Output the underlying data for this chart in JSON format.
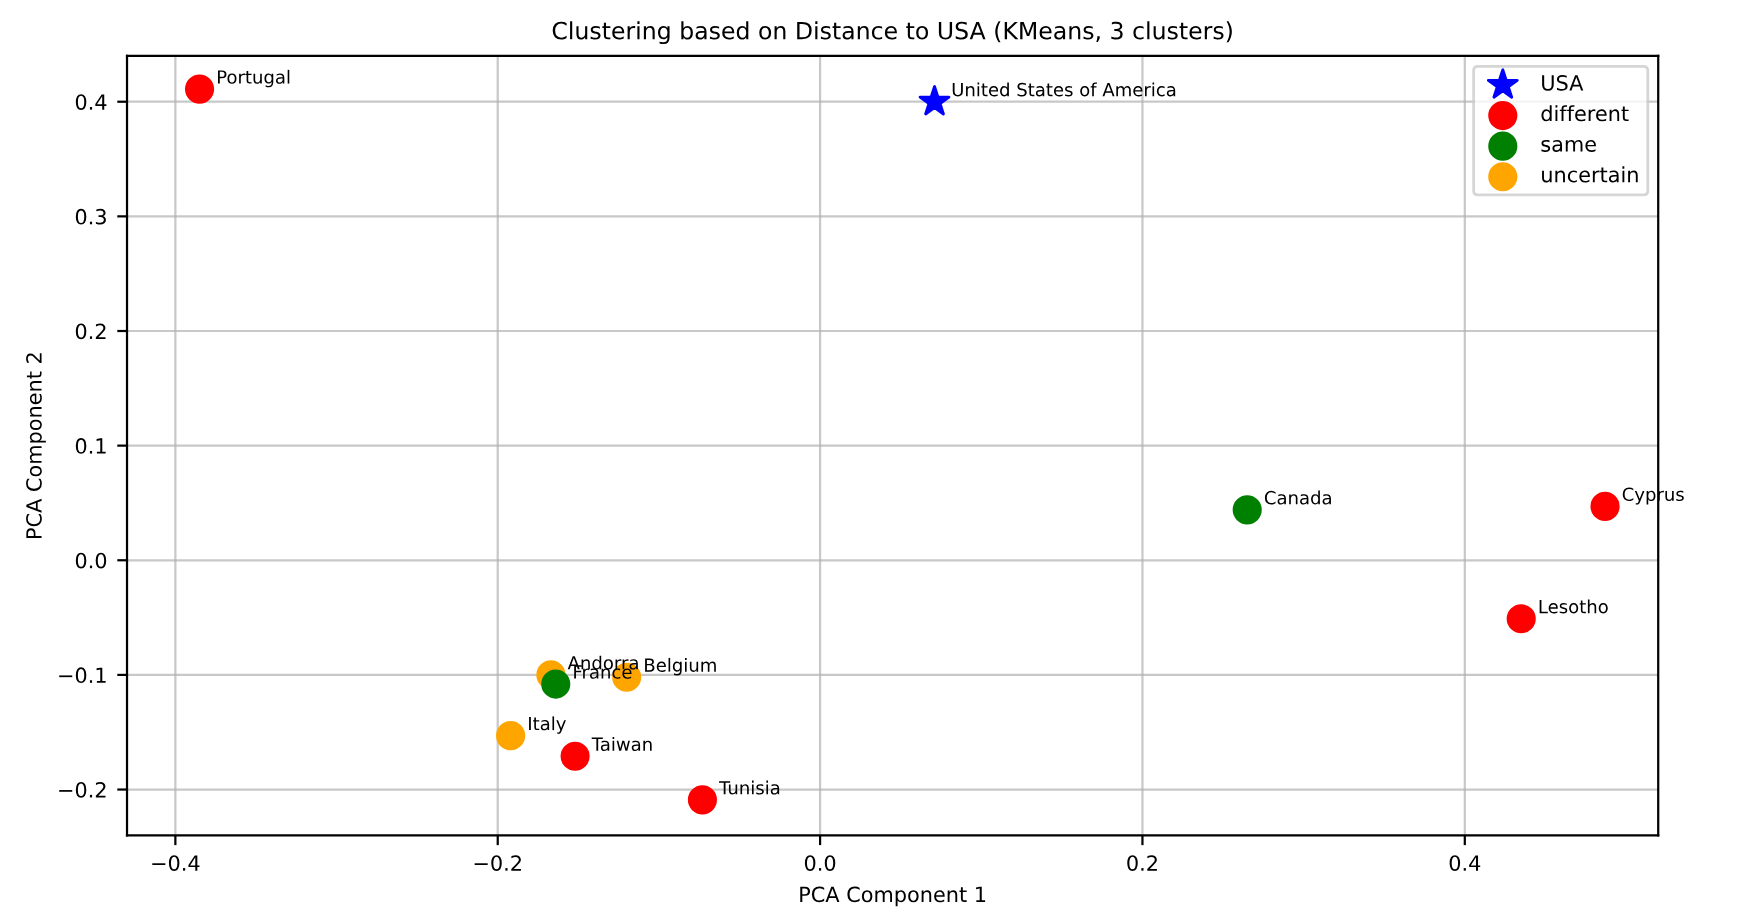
{
  "chart_data": {
    "type": "scatter",
    "title": "Clustering based on Distance to USA (KMeans, 3 clusters)",
    "xlabel": "PCA Component 1",
    "ylabel": "PCA Component 2",
    "series": [
      {
        "name": "USA",
        "color": "#0000ff",
        "marker": "star",
        "x": [
          0.071
        ],
        "values": [
          0.4
        ]
      },
      {
        "name": "different",
        "color": "#ff0000",
        "marker": "circle",
        "x": [
          -0.385,
          0.487,
          0.435,
          -0.152,
          -0.073
        ],
        "values": [
          0.411,
          0.047,
          -0.051,
          -0.171,
          -0.209
        ]
      },
      {
        "name": "same",
        "color": "#008000",
        "marker": "circle",
        "x": [
          0.265,
          -0.164
        ],
        "values": [
          0.044,
          -0.108
        ]
      },
      {
        "name": "uncertain",
        "color": "#ffa500",
        "marker": "circle",
        "x": [
          -0.167,
          -0.12,
          -0.192
        ],
        "values": [
          -0.1,
          -0.102,
          -0.153
        ]
      }
    ],
    "annotations": [
      {
        "text": "United States of America",
        "x": 0.071,
        "y": 0.4
      },
      {
        "text": "Portugal",
        "x": -0.385,
        "y": 0.411
      },
      {
        "text": "Cyprus",
        "x": 0.487,
        "y": 0.047
      },
      {
        "text": "Lesotho",
        "x": 0.435,
        "y": -0.051
      },
      {
        "text": "Taiwan",
        "x": -0.152,
        "y": -0.171
      },
      {
        "text": "Tunisia",
        "x": -0.073,
        "y": -0.209
      },
      {
        "text": "Canada",
        "x": 0.265,
        "y": 0.044
      },
      {
        "text": "France",
        "x": -0.164,
        "y": -0.108
      },
      {
        "text": "Andorra",
        "x": -0.167,
        "y": -0.1
      },
      {
        "text": "Belgium",
        "x": -0.12,
        "y": -0.102
      },
      {
        "text": "Italy",
        "x": -0.192,
        "y": -0.153
      }
    ],
    "xlim": [
      -0.43,
      0.52
    ],
    "ylim": [
      -0.24,
      0.44
    ],
    "xticks": [
      {
        "value": -0.4,
        "label": "−0.4"
      },
      {
        "value": -0.2,
        "label": "−0.2"
      },
      {
        "value": 0.0,
        "label": "0.0"
      },
      0.2,
      0.4
    ],
    "yticks": [
      {
        "value": -0.2,
        "label": "−0.2"
      },
      {
        "value": -0.1,
        "label": "−0.1"
      },
      {
        "value": 0.0,
        "label": "0.0"
      },
      0.1,
      0.2,
      0.3,
      0.4
    ],
    "grid": true,
    "legend": "top right"
  }
}
